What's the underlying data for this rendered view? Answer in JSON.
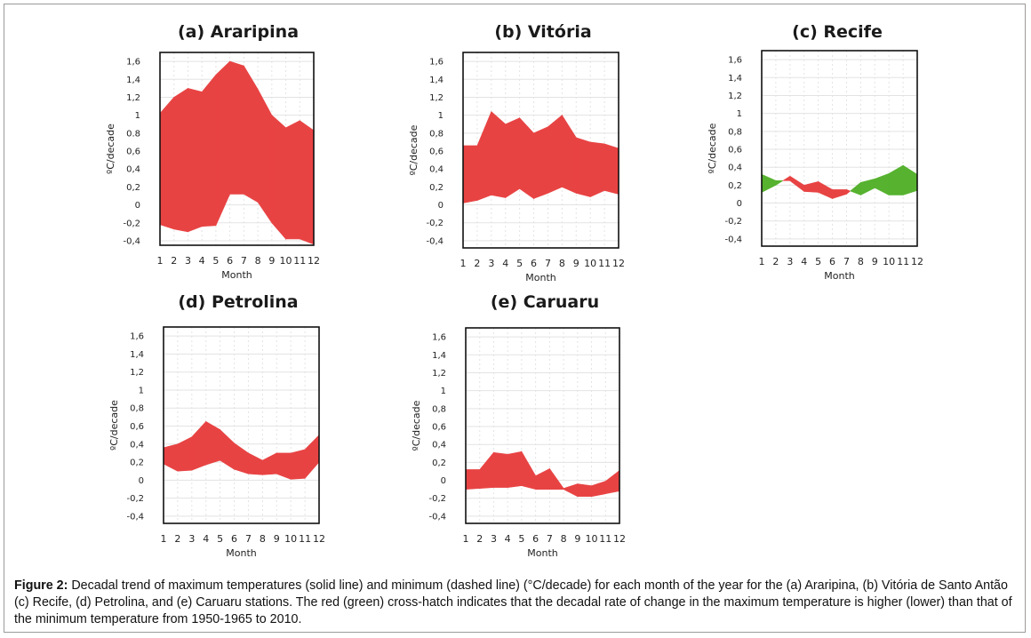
{
  "figure": {
    "caption_label": "Figure 2:",
    "caption_text": " Decadal trend of maximum temperatures (solid line) and minimum (dashed line) (°C/decade) for each month of the year for the (a) Araripina, (b) Vitória de Santo Antão (c) Recife, (d) Petrolina, and (e) Caruaru stations. The red (green) cross-hatch indicates that the decadal rate of change in the maximum temperature is higher (lower) than that of the minimum temperature from 1950-1965 to 2010."
  },
  "colors": {
    "positive_fill": "#e84343",
    "negative_fill": "#56b22f",
    "grid": "#e3e3e3",
    "axis": "#111111"
  },
  "chart_data": [
    {
      "type": "area",
      "title": "(a) Araripina",
      "xlabel": "Month",
      "ylabel": "ºC/decade",
      "x": [
        1,
        2,
        3,
        4,
        5,
        6,
        7,
        8,
        9,
        10,
        11,
        12
      ],
      "ylim": [
        -0.45,
        1.7
      ],
      "yticks": [
        "1,6",
        "1,4",
        "1,2",
        "1",
        "0.8",
        "0,6",
        "0,4",
        "0,2",
        "0",
        "-0,2",
        "-0,4"
      ],
      "ytick_values": [
        1.6,
        1.4,
        1.2,
        1.0,
        0.8,
        0.6,
        0.4,
        0.2,
        0,
        -0.2,
        -0.4
      ],
      "series": [
        {
          "name": "maximum",
          "values": [
            1.02,
            1.2,
            1.3,
            1.26,
            1.45,
            1.6,
            1.55,
            1.29,
            1.0,
            0.86,
            0.94,
            0.83
          ]
        },
        {
          "name": "minimum",
          "values": [
            -0.22,
            -0.27,
            -0.3,
            -0.24,
            -0.23,
            0.12,
            0.12,
            0.03,
            -0.2,
            -0.38,
            -0.38,
            -0.44
          ]
        }
      ]
    },
    {
      "type": "area",
      "title": "(b) Vitória",
      "xlabel": "Month",
      "ylabel": "ºC/decade",
      "x": [
        1,
        2,
        3,
        4,
        5,
        6,
        7,
        8,
        9,
        10,
        11,
        12
      ],
      "ylim": [
        -0.48,
        1.7
      ],
      "yticks": [
        "1,6",
        "1,4",
        "1,2",
        "1",
        "0,8",
        "0,6",
        "0,4",
        "0,2",
        "0",
        "-0,2",
        "-0,4"
      ],
      "ytick_values": [
        1.6,
        1.4,
        1.2,
        1.0,
        0.8,
        0.6,
        0.4,
        0.2,
        0,
        -0.2,
        -0.4
      ],
      "series": [
        {
          "name": "maximum",
          "values": [
            0.66,
            0.66,
            1.04,
            0.9,
            0.97,
            0.8,
            0.87,
            1.0,
            0.75,
            0.7,
            0.68,
            0.63
          ]
        },
        {
          "name": "minimum",
          "values": [
            0.02,
            0.05,
            0.11,
            0.08,
            0.18,
            0.07,
            0.13,
            0.2,
            0.13,
            0.09,
            0.16,
            0.12
          ]
        }
      ]
    },
    {
      "type": "area",
      "title": "(c) Recife",
      "xlabel": "Month",
      "ylabel": "ºC/decade",
      "x": [
        1,
        2,
        3,
        4,
        5,
        6,
        7,
        8,
        9,
        10,
        11,
        12
      ],
      "ylim": [
        -0.48,
        1.7
      ],
      "yticks": [
        "1,6",
        "1,4",
        "1,2",
        "1",
        "0,8",
        "0,6",
        "0,4",
        "0,2",
        "0",
        "-0,2",
        "-0,4"
      ],
      "ytick_values": [
        1.6,
        1.4,
        1.2,
        1.0,
        0.8,
        0.6,
        0.4,
        0.2,
        0,
        -0.2,
        -0.4
      ],
      "series": [
        {
          "name": "maximum",
          "values": [
            0.12,
            0.2,
            0.3,
            0.2,
            0.24,
            0.15,
            0.15,
            0.09,
            0.17,
            0.09,
            0.09,
            0.14
          ]
        },
        {
          "name": "minimum",
          "values": [
            0.32,
            0.25,
            0.25,
            0.13,
            0.12,
            0.05,
            0.1,
            0.23,
            0.27,
            0.33,
            0.42,
            0.32
          ]
        }
      ]
    },
    {
      "type": "area",
      "title": "(d) Petrolina",
      "xlabel": "Month",
      "ylabel": "ºC/decade",
      "x": [
        1,
        2,
        3,
        4,
        5,
        6,
        7,
        8,
        9,
        10,
        11,
        12
      ],
      "ylim": [
        -0.48,
        1.7
      ],
      "yticks": [
        "1,6",
        "1,4",
        "1,2",
        "1",
        "0,8",
        "0,6",
        "0,4",
        "0,2",
        "0",
        "-0,2",
        "-0,4"
      ],
      "ytick_values": [
        1.6,
        1.4,
        1.2,
        1.0,
        0.8,
        0.6,
        0.4,
        0.2,
        0,
        -0.2,
        -0.4
      ],
      "series": [
        {
          "name": "maximum",
          "values": [
            0.36,
            0.4,
            0.48,
            0.65,
            0.56,
            0.41,
            0.3,
            0.22,
            0.3,
            0.3,
            0.34,
            0.5
          ]
        },
        {
          "name": "minimum",
          "values": [
            0.18,
            0.1,
            0.11,
            0.17,
            0.22,
            0.12,
            0.07,
            0.06,
            0.07,
            0.01,
            0.02,
            0.2
          ]
        }
      ]
    },
    {
      "type": "area",
      "title": "(e) Caruaru",
      "xlabel": "Month",
      "ylabel": "ºC/decade",
      "x": [
        1,
        2,
        3,
        4,
        5,
        6,
        7,
        8,
        9,
        10,
        11,
        12
      ],
      "ylim": [
        -0.48,
        1.7
      ],
      "yticks": [
        "1,6",
        "1,4",
        "1,2",
        "1",
        "0,8",
        "0,6",
        "0,4",
        "0,2",
        "0",
        "-0,2",
        "-0,4"
      ],
      "ytick_values": [
        1.6,
        1.4,
        1.2,
        1.0,
        0.8,
        0.6,
        0.4,
        0.2,
        0,
        -0.2,
        -0.4
      ],
      "series": [
        {
          "name": "maximum",
          "values": [
            0.12,
            0.12,
            0.31,
            0.29,
            0.32,
            0.05,
            0.13,
            -0.09,
            -0.04,
            -0.06,
            -0.01,
            0.11
          ]
        },
        {
          "name": "minimum",
          "values": [
            -0.1,
            -0.09,
            -0.08,
            -0.08,
            -0.06,
            -0.1,
            -0.1,
            -0.1,
            -0.18,
            -0.18,
            -0.15,
            -0.12
          ]
        }
      ]
    }
  ]
}
